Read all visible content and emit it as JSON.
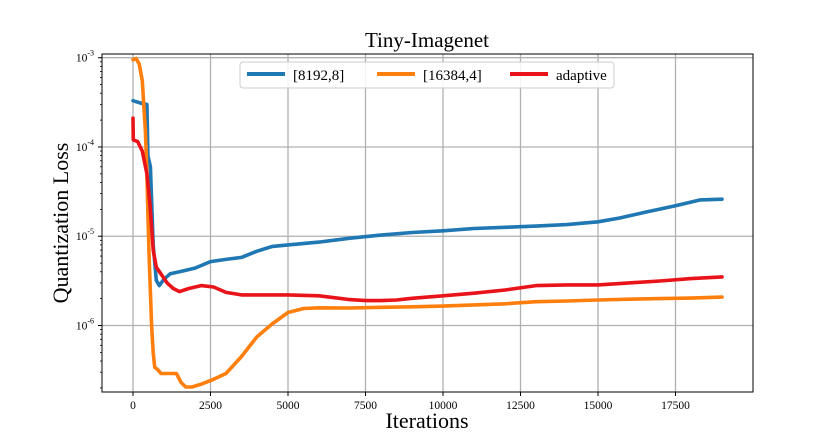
{
  "chart_data": {
    "type": "line",
    "title": "Tiny-Imagenet",
    "xlabel": "Iterations",
    "ylabel": "Quantization Loss",
    "yscale": "log",
    "xlim": [
      -1000,
      20000
    ],
    "ylim": [
      1.8e-07,
      0.0011
    ],
    "grid": true,
    "legend_position": "top-center",
    "x_ticks": [
      0,
      2500,
      5000,
      7500,
      10000,
      12500,
      15000,
      17500
    ],
    "x_tick_labels": [
      "0",
      "2500",
      "5000",
      "7500",
      "10000",
      "12500",
      "15000",
      "17500"
    ],
    "y_ticks": [
      1e-06,
      1e-05,
      0.0001,
      0.001
    ],
    "y_tick_labels": [
      {
        "base": "10",
        "exp": "-6"
      },
      {
        "base": "10",
        "exp": "-5"
      },
      {
        "base": "10",
        "exp": "-4"
      },
      {
        "base": "10",
        "exp": "-3"
      }
    ],
    "series": [
      {
        "name": "[8192,8]",
        "color": "#1f77b4",
        "points": [
          [
            0,
            0.00033
          ],
          [
            250,
            0.00031
          ],
          [
            450,
            0.0003
          ],
          [
            480,
            8e-05
          ],
          [
            560,
            6e-05
          ],
          [
            650,
            8e-06
          ],
          [
            750,
            3.2e-06
          ],
          [
            850,
            2.8e-06
          ],
          [
            1000,
            3.3e-06
          ],
          [
            1200,
            3.8e-06
          ],
          [
            1500,
            4e-06
          ],
          [
            2000,
            4.4e-06
          ],
          [
            2500,
            5.2e-06
          ],
          [
            3000,
            5.5e-06
          ],
          [
            3500,
            5.8e-06
          ],
          [
            4000,
            6.8e-06
          ],
          [
            4500,
            7.7e-06
          ],
          [
            5000,
            8e-06
          ],
          [
            6000,
            8.6e-06
          ],
          [
            7000,
            9.5e-06
          ],
          [
            8000,
            1.03e-05
          ],
          [
            9000,
            1.1e-05
          ],
          [
            10000,
            1.15e-05
          ],
          [
            11000,
            1.22e-05
          ],
          [
            12000,
            1.26e-05
          ],
          [
            13000,
            1.3e-05
          ],
          [
            14000,
            1.35e-05
          ],
          [
            15000,
            1.45e-05
          ],
          [
            15700,
            1.6e-05
          ],
          [
            16500,
            1.85e-05
          ],
          [
            17500,
            2.2e-05
          ],
          [
            18300,
            2.55e-05
          ],
          [
            19000,
            2.6e-05
          ]
        ]
      },
      {
        "name": "[16384,4]",
        "color": "#ff7f0e",
        "points": [
          [
            0,
            0.00095
          ],
          [
            100,
            0.00098
          ],
          [
            200,
            0.00085
          ],
          [
            300,
            0.00055
          ],
          [
            400,
            0.00015
          ],
          [
            450,
            5e-05
          ],
          [
            480,
            1.8e-05
          ],
          [
            520,
            6e-06
          ],
          [
            600,
            1e-06
          ],
          [
            650,
            5e-07
          ],
          [
            700,
            3.4e-07
          ],
          [
            800,
            3.2e-07
          ],
          [
            900,
            2.9e-07
          ],
          [
            1200,
            2.9e-07
          ],
          [
            1400,
            2.9e-07
          ],
          [
            1550,
            2.3e-07
          ],
          [
            1700,
            2.05e-07
          ],
          [
            1900,
            2.05e-07
          ],
          [
            2200,
            2.2e-07
          ],
          [
            2600,
            2.5e-07
          ],
          [
            3000,
            2.9e-07
          ],
          [
            3500,
            4.5e-07
          ],
          [
            4000,
            7.5e-07
          ],
          [
            4500,
            1.05e-06
          ],
          [
            5000,
            1.4e-06
          ],
          [
            5500,
            1.55e-06
          ],
          [
            6000,
            1.58e-06
          ],
          [
            7000,
            1.57e-06
          ],
          [
            8000,
            1.6e-06
          ],
          [
            9000,
            1.62e-06
          ],
          [
            10000,
            1.65e-06
          ],
          [
            11000,
            1.7e-06
          ],
          [
            12000,
            1.75e-06
          ],
          [
            13000,
            1.85e-06
          ],
          [
            14000,
            1.88e-06
          ],
          [
            15000,
            1.93e-06
          ],
          [
            16000,
            1.97e-06
          ],
          [
            17000,
            2e-06
          ],
          [
            18000,
            2.03e-06
          ],
          [
            19000,
            2.08e-06
          ]
        ]
      },
      {
        "name": "adaptive",
        "color": "#e8141a",
        "points": [
          [
            0,
            0.00021
          ],
          [
            10,
            0.00012
          ],
          [
            150,
            0.000115
          ],
          [
            300,
            9e-05
          ],
          [
            450,
            5e-05
          ],
          [
            550,
            2.2e-05
          ],
          [
            650,
            7e-06
          ],
          [
            750,
            4.5e-06
          ],
          [
            900,
            3.8e-06
          ],
          [
            1100,
            3e-06
          ],
          [
            1300,
            2.6e-06
          ],
          [
            1500,
            2.4e-06
          ],
          [
            1800,
            2.6e-06
          ],
          [
            2200,
            2.8e-06
          ],
          [
            2600,
            2.7e-06
          ],
          [
            3000,
            2.35e-06
          ],
          [
            3500,
            2.2e-06
          ],
          [
            4000,
            2.2e-06
          ],
          [
            5000,
            2.2e-06
          ],
          [
            6000,
            2.15e-06
          ],
          [
            7000,
            1.95e-06
          ],
          [
            7500,
            1.9e-06
          ],
          [
            8000,
            1.9e-06
          ],
          [
            8500,
            1.93e-06
          ],
          [
            9000,
            2.02e-06
          ],
          [
            10000,
            2.15e-06
          ],
          [
            11000,
            2.3e-06
          ],
          [
            12000,
            2.5e-06
          ],
          [
            13000,
            2.8e-06
          ],
          [
            14000,
            2.85e-06
          ],
          [
            15000,
            2.85e-06
          ],
          [
            16000,
            3e-06
          ],
          [
            17000,
            3.15e-06
          ],
          [
            18000,
            3.35e-06
          ],
          [
            19000,
            3.5e-06
          ]
        ]
      }
    ]
  }
}
